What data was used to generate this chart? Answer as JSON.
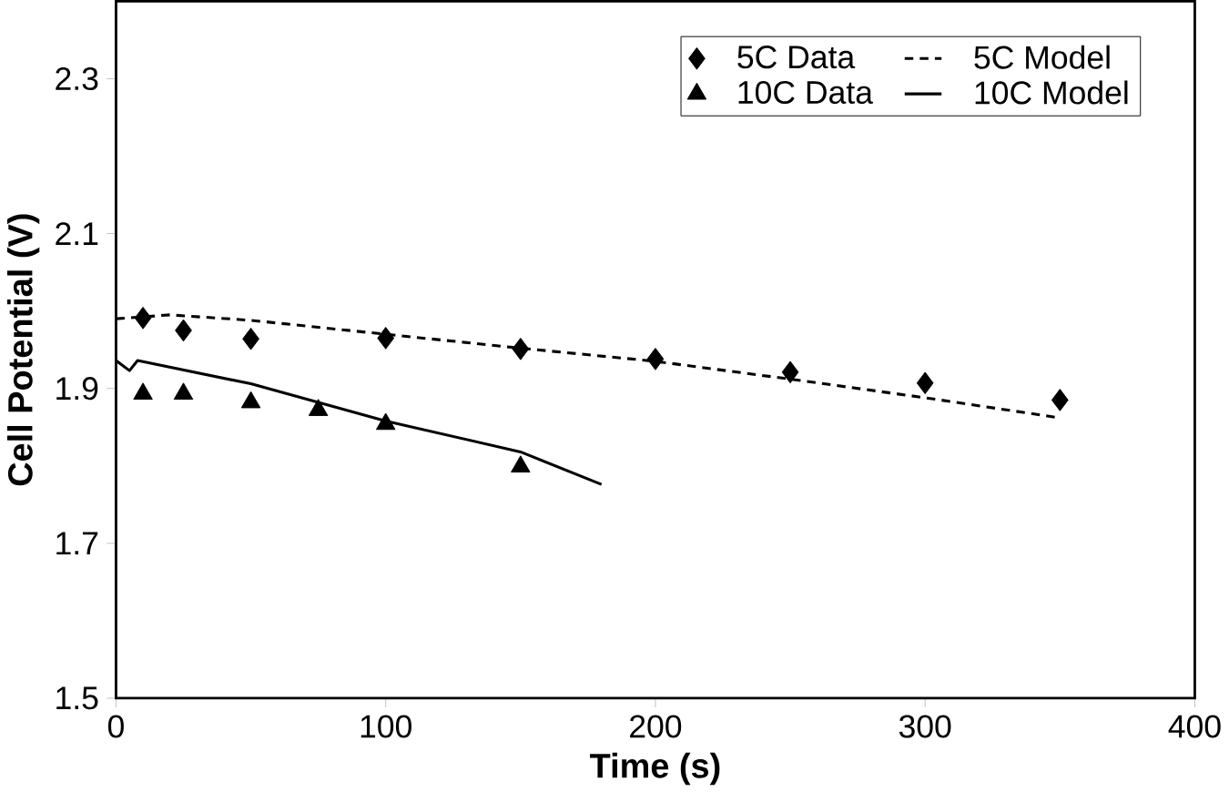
{
  "chart_data": {
    "type": "scatter",
    "xlabel": "Time (s)",
    "ylabel": "Cell Potential (V)",
    "xlim": [
      0,
      400
    ],
    "ylim": [
      1.5,
      2.4
    ],
    "xticks": [
      0,
      100,
      200,
      300,
      400
    ],
    "yticks": [
      1.5,
      1.7,
      1.9,
      2.1,
      2.3
    ],
    "grid": false,
    "legend": "top right",
    "series": [
      {
        "name": "5C Data",
        "marker": "diamond",
        "color": "#000000",
        "x": [
          10,
          25,
          50,
          100,
          150,
          200,
          250,
          300,
          350
        ],
        "values": [
          1.991,
          1.975,
          1.964,
          1.965,
          1.951,
          1.938,
          1.921,
          1.907,
          1.885
        ]
      },
      {
        "name": "5C Model",
        "type": "line",
        "marker": "none",
        "line_style": "dashed",
        "color": "#000000",
        "x": [
          0,
          20,
          50,
          100,
          150,
          200,
          250,
          300,
          350
        ],
        "values": [
          1.99,
          1.995,
          1.988,
          1.97,
          1.952,
          1.935,
          1.912,
          1.888,
          1.862
        ]
      },
      {
        "name": "10C Data",
        "marker": "triangle",
        "color": "#000000",
        "x": [
          10,
          25,
          50,
          75,
          100,
          150
        ],
        "values": [
          1.893,
          1.893,
          1.882,
          1.872,
          1.854,
          1.799
        ]
      },
      {
        "name": "10C Model",
        "type": "line",
        "marker": "none",
        "line_style": "solid",
        "color": "#000000",
        "x": [
          0,
          5,
          8,
          50,
          100,
          150,
          180
        ],
        "values": [
          1.936,
          1.923,
          1.936,
          1.906,
          1.858,
          1.818,
          1.776
        ]
      }
    ]
  }
}
